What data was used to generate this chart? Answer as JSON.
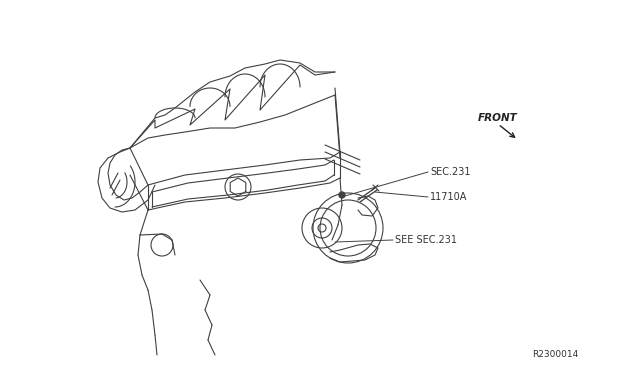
{
  "bg_color": "#ffffff",
  "line_color": "#404040",
  "label_sec231": "SEC.231",
  "label_see_sec231": "SEE SEC.231",
  "label_part": "11710A",
  "label_front": "FRONT",
  "label_code": "R2300014",
  "fig_width": 6.4,
  "fig_height": 3.72,
  "dpi": 100
}
